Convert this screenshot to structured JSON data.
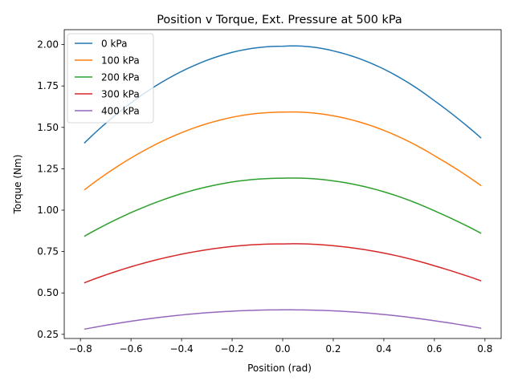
{
  "chart_data": {
    "type": "line",
    "title": "Position v Torque, Ext. Pressure at 500 kPa",
    "xlabel": "Position (rad)",
    "ylabel": "Torque (Nm)",
    "xlim": [
      -0.864,
      0.864
    ],
    "ylim": [
      0.225,
      2.09
    ],
    "xticks": [
      -0.8,
      -0.6,
      -0.4,
      -0.2,
      0.0,
      0.2,
      0.4,
      0.6,
      0.8
    ],
    "xtick_labels": [
      "−0.8",
      "−0.6",
      "−0.4",
      "−0.2",
      "0.0",
      "0.2",
      "0.4",
      "0.6",
      "0.8"
    ],
    "yticks": [
      0.25,
      0.5,
      0.75,
      1.0,
      1.25,
      1.5,
      1.75,
      2.0
    ],
    "ytick_labels": [
      "0.25",
      "0.50",
      "0.75",
      "1.00",
      "1.25",
      "1.50",
      "1.75",
      "2.00"
    ],
    "grid": false,
    "legend_position": "top-left",
    "x": [
      -0.785,
      -0.6,
      -0.4,
      -0.2,
      0.0,
      0.035,
      0.2,
      0.4,
      0.6,
      0.785
    ],
    "series": [
      {
        "name": "0 kPa",
        "color": "#1f77b4",
        "values": [
          1.405,
          1.648,
          1.838,
          1.953,
          1.99,
          1.992,
          1.962,
          1.852,
          1.661,
          1.435
        ]
      },
      {
        "name": "100 kPa",
        "color": "#ff7f0e",
        "values": [
          1.122,
          1.315,
          1.468,
          1.561,
          1.592,
          1.593,
          1.57,
          1.482,
          1.329,
          1.148
        ]
      },
      {
        "name": "200 kPa",
        "color": "#2ca02c",
        "values": [
          0.842,
          0.985,
          1.1,
          1.17,
          1.193,
          1.194,
          1.177,
          1.111,
          0.996,
          0.86
        ]
      },
      {
        "name": "300 kPa",
        "color": "#d62728",
        "values": [
          0.561,
          0.658,
          0.734,
          0.781,
          0.796,
          0.797,
          0.785,
          0.741,
          0.664,
          0.573
        ]
      },
      {
        "name": "400 kPa",
        "color": "#9467bd",
        "values": [
          0.281,
          0.329,
          0.367,
          0.39,
          0.398,
          0.398,
          0.392,
          0.37,
          0.332,
          0.287
        ]
      }
    ]
  }
}
